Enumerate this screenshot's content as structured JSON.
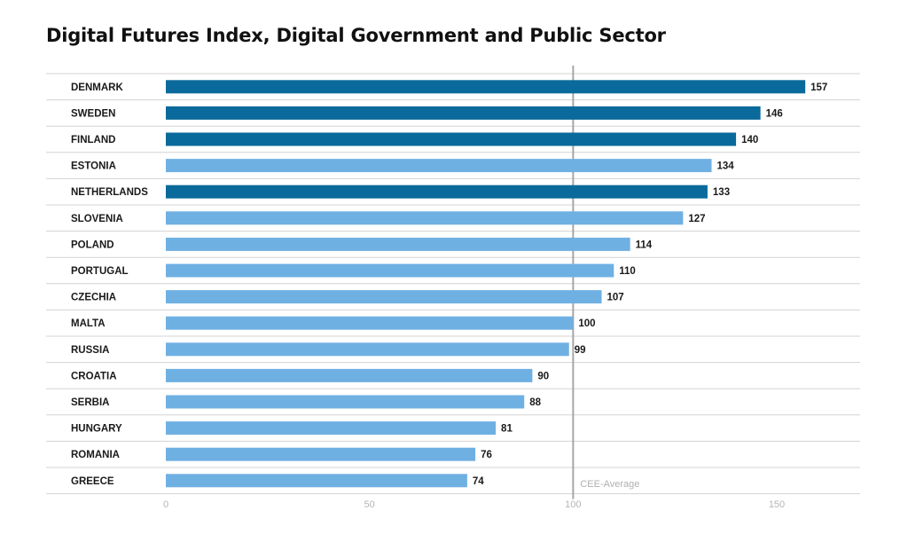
{
  "chart_data": {
    "type": "bar",
    "orientation": "horizontal",
    "title": "Digital Futures Index, Digital Government and Public Sector",
    "xlabel": "",
    "ylabel": "",
    "xlim": [
      0,
      170
    ],
    "x_ticks": [
      0,
      50,
      100,
      150
    ],
    "x_tick_labels": [
      "0",
      "50",
      "100",
      "150"
    ],
    "grid": "horizontal row separators",
    "categories": [
      "DENMARK",
      "SWEDEN",
      "FINLAND",
      "ESTONIA",
      "NETHERLANDS",
      "SLOVENIA",
      "POLAND",
      "PORTUGAL",
      "CZECHIA",
      "MALTA",
      "RUSSIA",
      "CROATIA",
      "SERBIA",
      "HUNGARY",
      "ROMANIA",
      "GREECE"
    ],
    "values": [
      157,
      146,
      140,
      134,
      133,
      127,
      114,
      110,
      107,
      100,
      99,
      90,
      88,
      81,
      76,
      74
    ],
    "value_labels": [
      "157",
      "146",
      "140",
      "134",
      "133",
      "127",
      "114",
      "110",
      "107",
      "100",
      "99",
      "90",
      "88",
      "81",
      "76",
      "74"
    ],
    "groups": [
      "highlight",
      "highlight",
      "highlight",
      "default",
      "highlight",
      "default",
      "default",
      "default",
      "default",
      "default",
      "default",
      "default",
      "default",
      "default",
      "default",
      "default"
    ],
    "group_colors": {
      "highlight": "#0a6a9b",
      "default": "#6fb0e3"
    },
    "reference_line": {
      "value": 100,
      "label": "CEE-Average",
      "color": "#a6a6a6"
    }
  }
}
